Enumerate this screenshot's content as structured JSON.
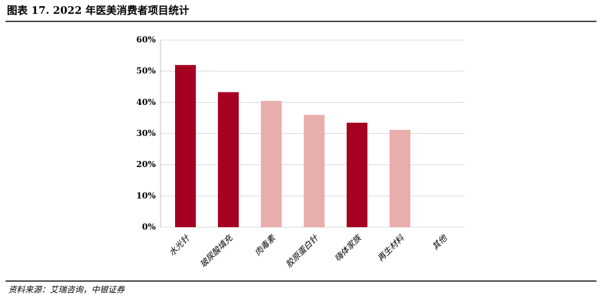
{
  "chart_data": {
    "type": "bar",
    "title": "图表 17. 2022 年医美消费者项目统计",
    "categories": [
      "水光针",
      "玻尿酸填充",
      "肉毒素",
      "胶原蛋白针",
      "嗨体家族",
      "再生材料",
      "其他"
    ],
    "values": [
      52,
      43.3,
      40.5,
      36,
      33.5,
      31.2,
      0
    ],
    "colors": [
      "#a50021",
      "#a50021",
      "#e8aeab",
      "#e8aeab",
      "#a50021",
      "#e8aeab",
      "#e8aeab"
    ],
    "ylim": [
      0,
      60
    ],
    "yticks": [
      {
        "value": 0,
        "label": "0%"
      },
      {
        "value": 10,
        "label": "10%"
      },
      {
        "value": 20,
        "label": "20%"
      },
      {
        "value": 30,
        "label": "30%"
      },
      {
        "value": 40,
        "label": "40%"
      },
      {
        "value": 50,
        "label": "50%"
      },
      {
        "value": 60,
        "label": "60%"
      }
    ],
    "grid": true
  },
  "source": "资料来源：艾瑞咨询，中银证券"
}
